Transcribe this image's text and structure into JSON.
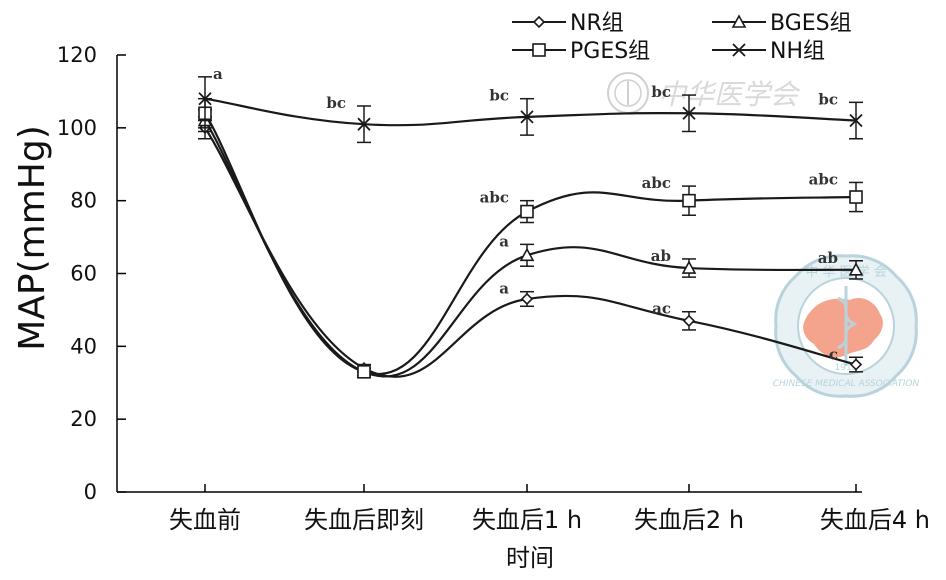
{
  "chart_data": {
    "type": "line",
    "title": "",
    "xlabel": "时间",
    "ylabel": "MAP(mmHg)",
    "ylim": [
      0,
      120
    ],
    "yticks": [
      0,
      20,
      40,
      60,
      80,
      100,
      120
    ],
    "categories": [
      "失血前",
      "失血后即刻",
      "失血后1 h",
      "失血后2 h",
      "失血后4 h"
    ],
    "legend_position": "top",
    "grid": false,
    "series": [
      {
        "name": "NR组",
        "marker": "diamond",
        "values": [
          100,
          34,
          53,
          47,
          35
        ],
        "errors": [
          3,
          1,
          2,
          2.5,
          2
        ]
      },
      {
        "name": "BGES组",
        "marker": "triangle",
        "values": [
          102,
          33,
          65,
          61.5,
          61
        ],
        "errors": [
          3,
          1,
          3,
          2.5,
          2.5
        ]
      },
      {
        "name": "PGES组",
        "marker": "square",
        "values": [
          104,
          33,
          77,
          80,
          81
        ],
        "errors": [
          4,
          1,
          3,
          4,
          4
        ]
      },
      {
        "name": "NH组",
        "marker": "x",
        "values": [
          108,
          101,
          103,
          104,
          102
        ],
        "errors": [
          6,
          5,
          5,
          5,
          5
        ]
      }
    ],
    "annotations": [
      {
        "text": "a",
        "category": "失血前",
        "series": "NH组"
      },
      {
        "text": "bc",
        "category": "失血后即刻",
        "series": "NH组"
      },
      {
        "text": "bc",
        "category": "失血后1 h",
        "series": "NH组"
      },
      {
        "text": "bc",
        "category": "失血后2 h",
        "series": "NH组"
      },
      {
        "text": "bc",
        "category": "失血后4 h",
        "series": "NH组"
      },
      {
        "text": "abc",
        "category": "失血后1 h",
        "series": "PGES组"
      },
      {
        "text": "abc",
        "category": "失血后2 h",
        "series": "PGES组"
      },
      {
        "text": "abc",
        "category": "失血后4 h",
        "series": "PGES组"
      },
      {
        "text": "a",
        "category": "失血后1 h",
        "series": "BGES组"
      },
      {
        "text": "ab",
        "category": "失血后2 h",
        "series": "BGES组"
      },
      {
        "text": "ab",
        "category": "失血后4 h",
        "series": "BGES组"
      },
      {
        "text": "a",
        "category": "失血后1 h",
        "series": "NR组"
      },
      {
        "text": "ac",
        "category": "失血后2 h",
        "series": "NR组"
      },
      {
        "text": "c",
        "category": "失血后4 h",
        "series": "NR组"
      }
    ]
  },
  "watermark": {
    "text": "中华医学会",
    "seal_top": "中 华 医 学 会",
    "seal_ring": "CHINESE MEDICAL ASSOCIATION",
    "seal_year": "1915"
  },
  "colors": {
    "line": "#1a1a1a",
    "watermark": "#b9d3dc",
    "watermark_fill": "#e8f1f4",
    "map_fill": "#f4a48c"
  }
}
